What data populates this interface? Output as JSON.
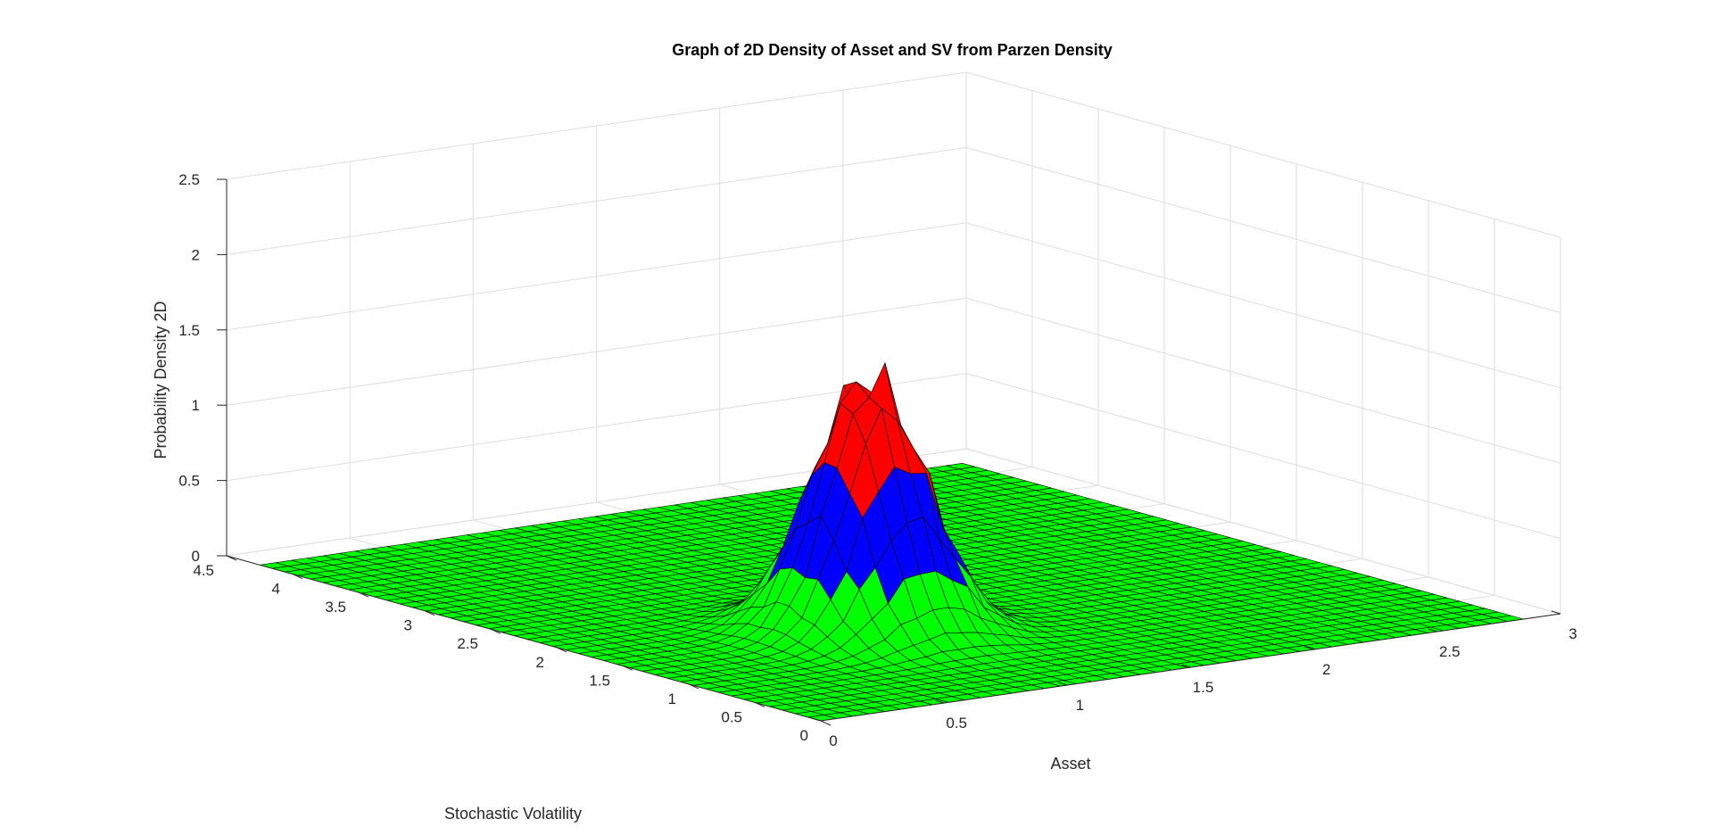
{
  "chart_data": {
    "type": "surface3d",
    "title": "Graph of 2D Density of Asset and SV from Parzen Density",
    "xlabel": "Asset",
    "ylabel": "Stochastic Volatility",
    "zlabel": "Probability Density 2D",
    "xlim": [
      0,
      3
    ],
    "ylim": [
      0,
      4.5
    ],
    "zlim": [
      0,
      2.5
    ],
    "x_ticks": [
      "0",
      "0.5",
      "1",
      "1.5",
      "2",
      "2.5",
      "3"
    ],
    "y_ticks": [
      "0",
      "0.5",
      "1",
      "1.5",
      "2",
      "2.5",
      "3",
      "3.5",
      "4",
      "4.5"
    ],
    "z_ticks": [
      "0",
      "0.5",
      "1",
      "1.5",
      "2",
      "2.5"
    ],
    "grid": true,
    "surface": {
      "x_range": [
        0,
        2.85
      ],
      "y_range": [
        0,
        4.25
      ],
      "peak_x": 1.0,
      "peak_y": 1.5,
      "peak_z": 1.7,
      "spread_x": 0.18,
      "spread_y": 0.28
    },
    "color_bands": [
      {
        "from": 0,
        "to": 0.45,
        "color": "#00ff00"
      },
      {
        "from": 0.45,
        "to": 1.0,
        "color": "#0000ff"
      },
      {
        "from": 1.0,
        "to": 2.5,
        "color": "#ff0000"
      }
    ]
  }
}
